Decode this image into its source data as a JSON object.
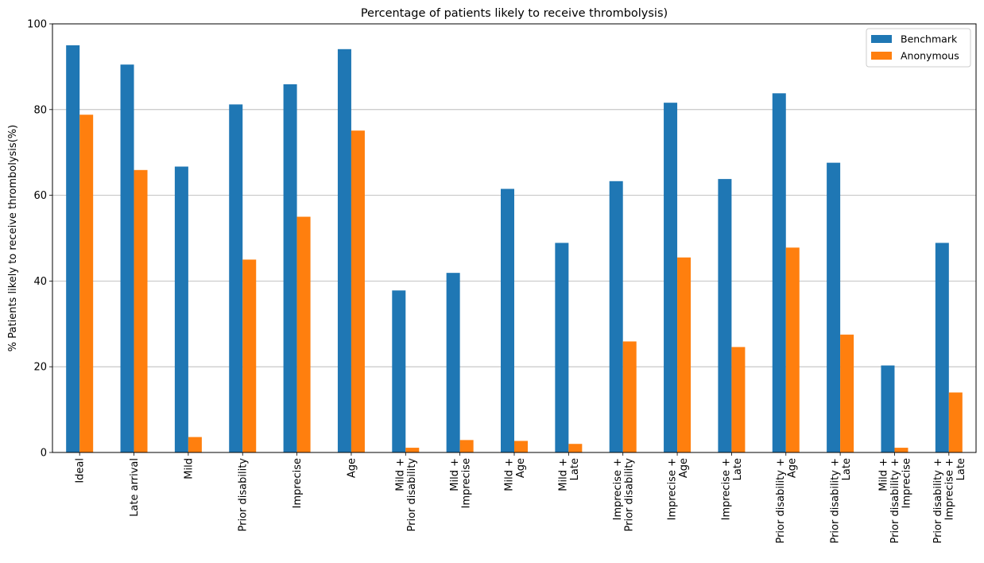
{
  "chart_data": {
    "type": "bar",
    "title": "Percentage of patients likely to receive thrombolysis)",
    "xlabel": "",
    "ylabel": "% Patients likely to receive thrombolysis(%)",
    "ylim": [
      0,
      100
    ],
    "yticks": [
      0,
      20,
      40,
      60,
      80,
      100
    ],
    "grid": "horizontal",
    "legend_position": "top-right",
    "categories": [
      [
        "Ideal"
      ],
      [
        "Late arrival"
      ],
      [
        "Mild"
      ],
      [
        "Prior disability"
      ],
      [
        "Imprecise"
      ],
      [
        "Age"
      ],
      [
        "Mild +",
        "Prior disability"
      ],
      [
        "Mild +",
        "Imprecise"
      ],
      [
        "Mild +",
        "Age"
      ],
      [
        "Mild +",
        "Late"
      ],
      [
        "Imprecise +",
        "Prior disability"
      ],
      [
        "Imprecise +",
        "Age"
      ],
      [
        "Imprecise +",
        "Late"
      ],
      [
        "Prior disability +",
        "Age"
      ],
      [
        "Prior disability +",
        "Late"
      ],
      [
        "Mild +",
        "Prior disability +",
        "Imprecise"
      ],
      [
        "Prior disability +",
        "Imprecise +",
        "Late"
      ]
    ],
    "series": [
      {
        "name": "Benchmark",
        "color": "#1f77b4",
        "values": [
          95.0,
          90.5,
          66.7,
          81.2,
          85.9,
          94.1,
          37.8,
          41.9,
          61.5,
          48.9,
          63.3,
          81.6,
          63.8,
          83.8,
          67.6,
          20.3,
          48.9
        ]
      },
      {
        "name": "Anonymous",
        "color": "#ff7f0e",
        "values": [
          78.8,
          65.9,
          3.6,
          45.0,
          55.0,
          75.1,
          1.1,
          2.9,
          2.7,
          2.0,
          25.9,
          45.5,
          24.6,
          47.8,
          27.5,
          1.1,
          14.0
        ]
      }
    ]
  }
}
